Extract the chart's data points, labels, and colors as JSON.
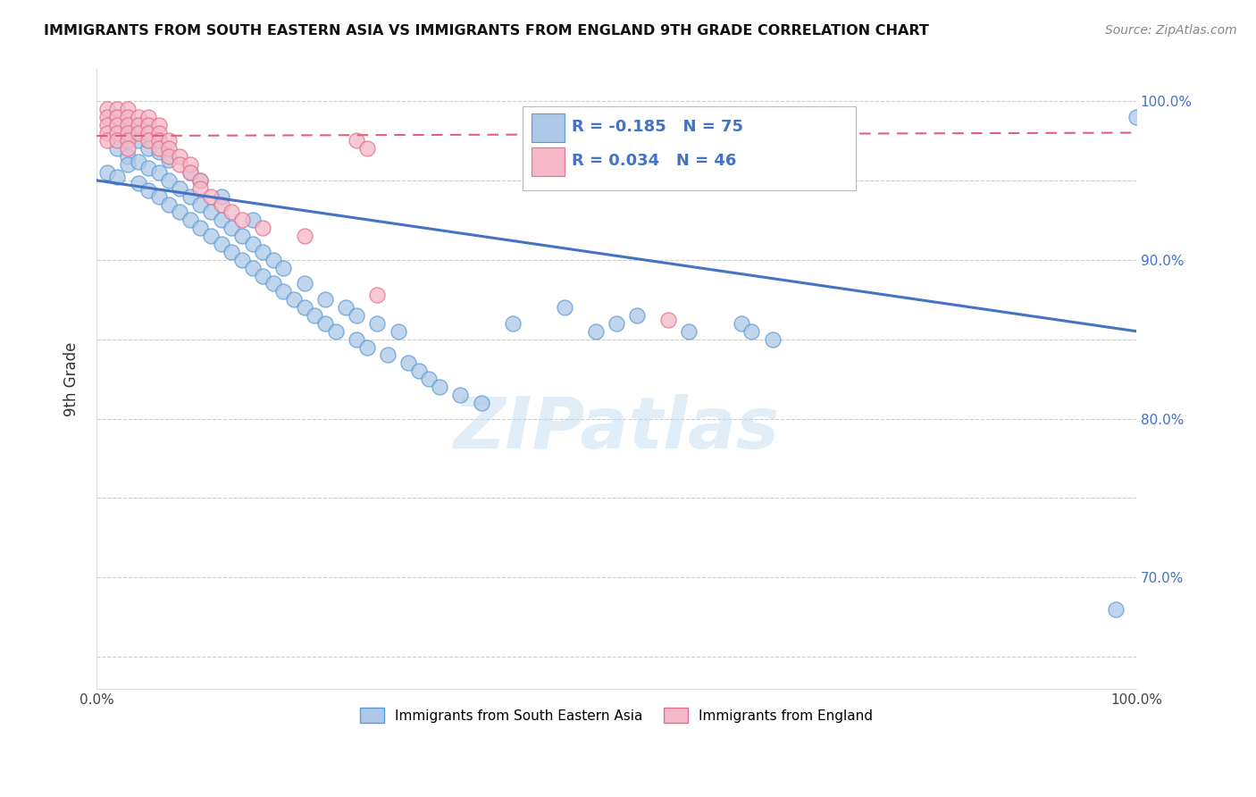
{
  "title": "IMMIGRANTS FROM SOUTH EASTERN ASIA VS IMMIGRANTS FROM ENGLAND 9TH GRADE CORRELATION CHART",
  "source": "Source: ZipAtlas.com",
  "ylabel": "9th Grade",
  "watermark": "ZIPatlas",
  "blue_label": "Immigrants from South Eastern Asia",
  "pink_label": "Immigrants from England",
  "blue_R": -0.185,
  "blue_N": 75,
  "pink_R": 0.034,
  "pink_N": 46,
  "blue_color": "#adc8e8",
  "blue_edge_color": "#5b9bd5",
  "pink_color": "#f4b8c8",
  "pink_edge_color": "#e07090",
  "blue_line_color": "#4472c4",
  "pink_line_color": "#e06080",
  "xlim": [
    0.0,
    1.0
  ],
  "ylim": [
    0.63,
    1.02
  ],
  "blue_scatter_x": [
    0.01,
    0.02,
    0.02,
    0.03,
    0.03,
    0.03,
    0.04,
    0.04,
    0.04,
    0.05,
    0.05,
    0.05,
    0.06,
    0.06,
    0.06,
    0.07,
    0.07,
    0.07,
    0.08,
    0.08,
    0.09,
    0.09,
    0.09,
    0.1,
    0.1,
    0.1,
    0.11,
    0.11,
    0.12,
    0.12,
    0.12,
    0.13,
    0.13,
    0.14,
    0.14,
    0.15,
    0.15,
    0.15,
    0.16,
    0.16,
    0.17,
    0.17,
    0.18,
    0.18,
    0.19,
    0.2,
    0.2,
    0.21,
    0.22,
    0.22,
    0.23,
    0.24,
    0.25,
    0.25,
    0.26,
    0.27,
    0.28,
    0.29,
    0.3,
    0.31,
    0.32,
    0.33,
    0.35,
    0.37,
    0.4,
    0.45,
    0.48,
    0.5,
    0.52,
    0.57,
    0.62,
    0.63,
    0.65,
    0.98,
    1.0
  ],
  "blue_scatter_y": [
    0.955,
    0.97,
    0.952,
    0.965,
    0.978,
    0.96,
    0.948,
    0.962,
    0.975,
    0.944,
    0.958,
    0.97,
    0.94,
    0.955,
    0.968,
    0.935,
    0.95,
    0.963,
    0.93,
    0.945,
    0.925,
    0.94,
    0.955,
    0.92,
    0.935,
    0.95,
    0.915,
    0.93,
    0.91,
    0.925,
    0.94,
    0.905,
    0.92,
    0.9,
    0.915,
    0.895,
    0.91,
    0.925,
    0.89,
    0.905,
    0.885,
    0.9,
    0.88,
    0.895,
    0.875,
    0.87,
    0.885,
    0.865,
    0.86,
    0.875,
    0.855,
    0.87,
    0.85,
    0.865,
    0.845,
    0.86,
    0.84,
    0.855,
    0.835,
    0.83,
    0.825,
    0.82,
    0.815,
    0.81,
    0.86,
    0.87,
    0.855,
    0.86,
    0.865,
    0.855,
    0.86,
    0.855,
    0.85,
    0.68,
    0.99
  ],
  "pink_scatter_x": [
    0.01,
    0.01,
    0.01,
    0.01,
    0.01,
    0.02,
    0.02,
    0.02,
    0.02,
    0.02,
    0.03,
    0.03,
    0.03,
    0.03,
    0.03,
    0.03,
    0.04,
    0.04,
    0.04,
    0.05,
    0.05,
    0.05,
    0.05,
    0.06,
    0.06,
    0.06,
    0.06,
    0.07,
    0.07,
    0.07,
    0.08,
    0.08,
    0.09,
    0.09,
    0.1,
    0.1,
    0.11,
    0.12,
    0.13,
    0.14,
    0.16,
    0.2,
    0.25,
    0.26,
    0.27,
    0.55
  ],
  "pink_scatter_y": [
    0.995,
    0.99,
    0.985,
    0.98,
    0.975,
    0.995,
    0.99,
    0.985,
    0.98,
    0.975,
    0.995,
    0.99,
    0.985,
    0.98,
    0.975,
    0.97,
    0.99,
    0.985,
    0.98,
    0.99,
    0.985,
    0.98,
    0.975,
    0.985,
    0.98,
    0.975,
    0.97,
    0.975,
    0.97,
    0.965,
    0.965,
    0.96,
    0.96,
    0.955,
    0.95,
    0.945,
    0.94,
    0.935,
    0.93,
    0.925,
    0.92,
    0.915,
    0.975,
    0.97,
    0.878,
    0.862
  ],
  "blue_trend_y_start": 0.95,
  "blue_trend_y_end": 0.855,
  "pink_trend_y_start": 0.978,
  "pink_trend_y_end": 0.98,
  "right_ytick_labels": [
    "70.0%",
    "80.0%",
    "90.0%",
    "100.0%"
  ],
  "right_ytick_values": [
    0.7,
    0.8,
    0.9,
    1.0
  ],
  "all_ytick_values": [
    0.65,
    0.7,
    0.75,
    0.8,
    0.85,
    0.9,
    0.95,
    1.0
  ],
  "xtick_values": [
    0.0,
    0.1,
    0.2,
    0.3,
    0.4,
    0.5,
    0.6,
    0.7,
    0.8,
    0.9,
    1.0
  ],
  "xtick_labels": [
    "0.0%",
    "",
    "",
    "",
    "",
    "",
    "",
    "",
    "",
    "",
    "100.0%"
  ]
}
